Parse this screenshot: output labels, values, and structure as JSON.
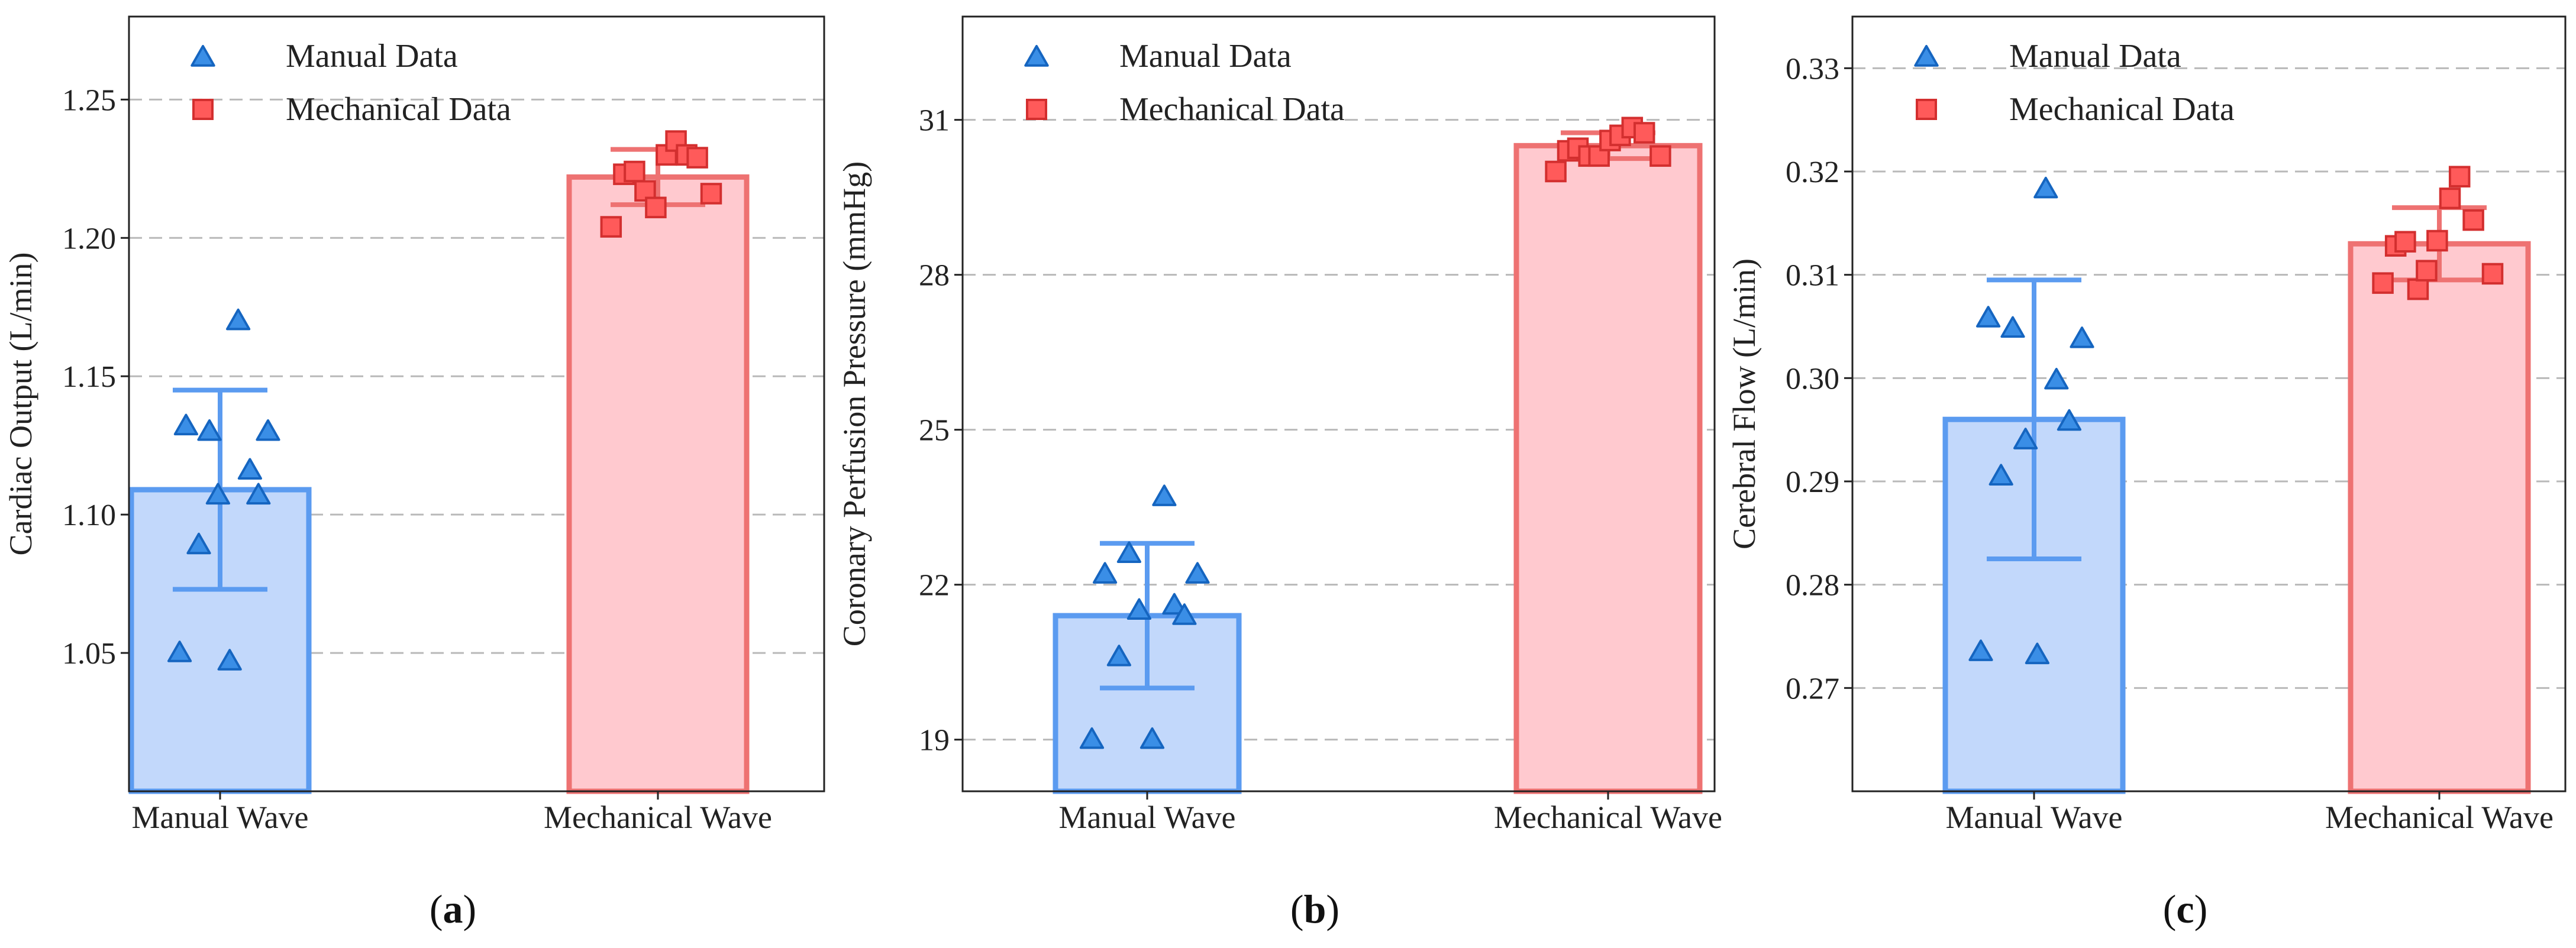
{
  "colors": {
    "manual_stroke": "#5b9bf0",
    "manual_fill": "#c2d8fb",
    "manual_marker_fill": "#3a8ee6",
    "manual_marker_stroke": "#1565c0",
    "mech_stroke": "#ee7272",
    "mech_fill": "#ffc9cf",
    "mech_marker_fill": "#ff5a5a",
    "mech_marker_stroke": "#d32f2f",
    "grid": "#b9b9b9",
    "axis": "#222222"
  },
  "chart_data": [
    {
      "type": "bar",
      "panel_label": "a",
      "categories": [
        "Manual Wave",
        "Mechanical Wave"
      ],
      "ylabel": "Cardiac Output  (L/min)",
      "ylim": [
        1.0,
        1.28
      ],
      "yticks": [
        1.05,
        1.1,
        1.15,
        1.2,
        1.25
      ],
      "ytick_labels": [
        "1.05",
        "1.10",
        "1.15",
        "1.20",
        "1.25"
      ],
      "grid": true,
      "legend": {
        "position": "top-left",
        "entries": [
          "Manual Data",
          "Mechanical Data"
        ]
      },
      "series": [
        {
          "name": "Manual Wave",
          "mean": 1.109,
          "sd": 0.036,
          "points": [
            {
              "x": -0.38,
              "y": 1.05
            },
            {
              "x": -0.32,
              "y": 1.132
            },
            {
              "x": -0.2,
              "y": 1.089
            },
            {
              "x": -0.1,
              "y": 1.13
            },
            {
              "x": -0.02,
              "y": 1.107
            },
            {
              "x": 0.09,
              "y": 1.047
            },
            {
              "x": 0.17,
              "y": 1.17
            },
            {
              "x": 0.28,
              "y": 1.116
            },
            {
              "x": 0.36,
              "y": 1.107
            },
            {
              "x": 0.45,
              "y": 1.13
            }
          ]
        },
        {
          "name": "Mechanical Wave",
          "mean": 1.222,
          "sd": 0.01,
          "points": [
            {
              "x": -0.44,
              "y": 1.204
            },
            {
              "x": -0.32,
              "y": 1.223
            },
            {
              "x": -0.22,
              "y": 1.224
            },
            {
              "x": -0.12,
              "y": 1.217
            },
            {
              "x": -0.02,
              "y": 1.211
            },
            {
              "x": 0.08,
              "y": 1.23
            },
            {
              "x": 0.17,
              "y": 1.235
            },
            {
              "x": 0.27,
              "y": 1.23
            },
            {
              "x": 0.37,
              "y": 1.229
            },
            {
              "x": 0.5,
              "y": 1.216
            }
          ]
        }
      ]
    },
    {
      "type": "bar",
      "panel_label": "b",
      "categories": [
        "Manual Wave",
        "Mechanical Wave"
      ],
      "ylabel": "Coronary Perfusion Pressure  (mmHg)",
      "ylim": [
        18,
        33
      ],
      "yticks": [
        19,
        22,
        25,
        28,
        31
      ],
      "ytick_labels": [
        "19",
        "22",
        "25",
        "28",
        "31"
      ],
      "grid": true,
      "legend": {
        "position": "top-left",
        "entries": [
          "Manual Data",
          "Mechanical Data"
        ]
      },
      "series": [
        {
          "name": "Manual Wave",
          "mean": 21.4,
          "sd": 1.4,
          "points": [
            {
              "x": -0.55,
              "y": 19.0
            },
            {
              "x": -0.42,
              "y": 22.2
            },
            {
              "x": -0.28,
              "y": 20.6
            },
            {
              "x": -0.18,
              "y": 22.6
            },
            {
              "x": -0.08,
              "y": 21.5
            },
            {
              "x": 0.05,
              "y": 19.0
            },
            {
              "x": 0.17,
              "y": 23.7
            },
            {
              "x": 0.27,
              "y": 21.6
            },
            {
              "x": 0.37,
              "y": 21.4
            },
            {
              "x": 0.5,
              "y": 22.2
            }
          ]
        },
        {
          "name": "Mechanical Wave",
          "mean": 30.5,
          "sd": 0.25,
          "points": [
            {
              "x": -0.52,
              "y": 30.0
            },
            {
              "x": -0.4,
              "y": 30.4
            },
            {
              "x": -0.3,
              "y": 30.45
            },
            {
              "x": -0.19,
              "y": 30.3
            },
            {
              "x": -0.09,
              "y": 30.3
            },
            {
              "x": 0.02,
              "y": 30.6
            },
            {
              "x": 0.12,
              "y": 30.7
            },
            {
              "x": 0.24,
              "y": 30.85
            },
            {
              "x": 0.36,
              "y": 30.75
            },
            {
              "x": 0.52,
              "y": 30.3
            }
          ]
        }
      ]
    },
    {
      "type": "bar",
      "panel_label": "c",
      "categories": [
        "Manual Wave",
        "Mechanical Wave"
      ],
      "ylabel": "Cerebral Flow  (L/min)",
      "ylim": [
        0.26,
        0.335
      ],
      "yticks": [
        0.27,
        0.28,
        0.29,
        0.3,
        0.31,
        0.32,
        0.33
      ],
      "ytick_labels": [
        "0.27",
        "0.28",
        "0.29",
        "0.30",
        "0.31",
        "0.32",
        "0.33"
      ],
      "grid": true,
      "legend": {
        "position": "top-left",
        "entries": [
          "Manual Data",
          "Mechanical Data"
        ]
      },
      "series": [
        {
          "name": "Manual Wave",
          "mean": 0.296,
          "sd": 0.0135,
          "points": [
            {
              "x": -0.5,
              "y": 0.2735
            },
            {
              "x": -0.43,
              "y": 0.3058
            },
            {
              "x": -0.31,
              "y": 0.2905
            },
            {
              "x": -0.2,
              "y": 0.3048
            },
            {
              "x": -0.08,
              "y": 0.294
            },
            {
              "x": 0.03,
              "y": 0.2732
            },
            {
              "x": 0.11,
              "y": 0.3183
            },
            {
              "x": 0.21,
              "y": 0.2998
            },
            {
              "x": 0.33,
              "y": 0.2958
            },
            {
              "x": 0.45,
              "y": 0.3038
            }
          ]
        },
        {
          "name": "Mechanical Wave",
          "mean": 0.313,
          "sd": 0.0035,
          "points": [
            {
              "x": -0.53,
              "y": 0.3092
            },
            {
              "x": -0.41,
              "y": 0.3128
            },
            {
              "x": -0.32,
              "y": 0.3132
            },
            {
              "x": -0.2,
              "y": 0.3086
            },
            {
              "x": -0.12,
              "y": 0.3104
            },
            {
              "x": -0.02,
              "y": 0.3133
            },
            {
              "x": 0.1,
              "y": 0.3174
            },
            {
              "x": 0.19,
              "y": 0.3195
            },
            {
              "x": 0.32,
              "y": 0.3153
            },
            {
              "x": 0.5,
              "y": 0.3101
            }
          ]
        }
      ]
    }
  ]
}
